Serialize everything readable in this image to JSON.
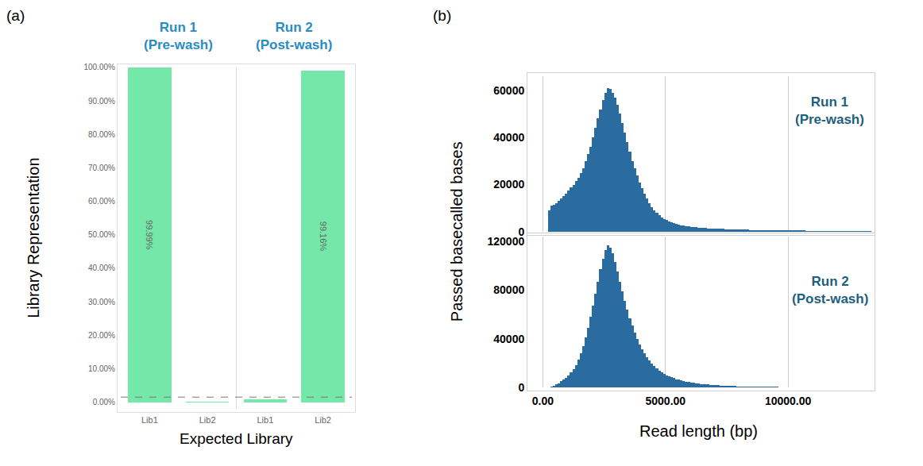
{
  "chart_data": [
    {
      "type": "bar",
      "title": "(a)",
      "xlabel": "Expected Library",
      "ylabel": "Library Representation",
      "ylim": [
        -2,
        100
      ],
      "yticks": [
        {
          "value": 0,
          "label": "0.00%"
        },
        {
          "value": 10,
          "label": "10.00%"
        },
        {
          "value": 20,
          "label": "20.00%"
        },
        {
          "value": 30,
          "label": "30.00%"
        },
        {
          "value": 40,
          "label": "40.00%"
        },
        {
          "value": 50,
          "label": "50.00%"
        },
        {
          "value": 60,
          "label": "60.00%"
        },
        {
          "value": 70,
          "label": "70.00%"
        },
        {
          "value": 80,
          "label": "80.00%"
        },
        {
          "value": 90,
          "label": "90.00%"
        },
        {
          "value": 100,
          "label": "100.00%"
        }
      ],
      "grid": false,
      "color": "#74e8a8",
      "data_labels": true,
      "reference_line": {
        "value": 1.5,
        "line_style": "dash"
      },
      "groups": [
        {
          "name": "Run 1\n(Pre-wash)",
          "categories": [
            "Lib1",
            "Lib2"
          ],
          "values": [
            99.99,
            0.01
          ],
          "value_labels": [
            "99.99%",
            null
          ]
        },
        {
          "name": "Run 2\n(Post-wash)",
          "categories": [
            "Lib1",
            "Lib2"
          ],
          "values": [
            0.84,
            99.16
          ],
          "value_labels": [
            null,
            "99.16%"
          ]
        }
      ]
    },
    {
      "type": "histogram",
      "title": "(b)",
      "xlabel": "Read length (bp)",
      "ylabel": "Passed basecalled bases",
      "xlim": [
        -500,
        13400
      ],
      "xticks": [
        {
          "value": 0,
          "label": "0.00"
        },
        {
          "value": 5000,
          "label": "5000.00"
        },
        {
          "value": 10000,
          "label": "10000.00"
        }
      ],
      "grid": "x",
      "panels": [
        {
          "name": "Run 1\n(Pre-wash)",
          "color": "#2a6c9f",
          "ylim": [
            0,
            66000
          ],
          "yticks": [
            0,
            20000,
            40000,
            60000
          ],
          "bins": [
            0,
            100,
            200,
            300,
            400,
            500,
            600,
            700,
            800,
            900,
            1000,
            1100,
            1200,
            1300,
            1400,
            1500,
            1600,
            1700,
            1800,
            1900,
            2000,
            2100,
            2200,
            2300,
            2400,
            2500,
            2600,
            2700,
            2800,
            2900,
            3000,
            3100,
            3200,
            3300,
            3400,
            3500,
            3600,
            3700,
            3800,
            3900,
            4000,
            4100,
            4200,
            4300,
            4400,
            4500,
            4600,
            4700,
            4800,
            4900,
            5000,
            5100,
            5200,
            5300,
            5400,
            5500,
            5600,
            5700,
            5800,
            5900,
            6000,
            6100,
            6200,
            6300,
            6400,
            6500,
            6600,
            6700,
            6800,
            6900,
            7000,
            7100,
            7200,
            7300,
            7400,
            7500,
            7600,
            7700,
            7800,
            7900,
            8000,
            8100,
            8200,
            8300,
            8400,
            8500,
            8600,
            8700,
            8800,
            8900,
            9000,
            9100,
            9200,
            9300,
            9400,
            9500,
            9600,
            9700,
            9800,
            9900,
            10000,
            10100,
            10200,
            10300,
            10400,
            10500,
            10600,
            10700,
            10800,
            10900,
            11000,
            11100,
            11200,
            11300,
            11400,
            11500,
            11600,
            11700,
            11800,
            11900,
            12000,
            12100,
            12200,
            12300,
            12400,
            12500,
            12600,
            12700,
            12800,
            12900,
            13000,
            13100,
            13200,
            13300,
            13400
          ],
          "counts": [
            0,
            0,
            9000,
            11000,
            11500,
            12000,
            13000,
            14000,
            15000,
            16000,
            17500,
            19000,
            20000,
            21500,
            23000,
            25000,
            27000,
            30000,
            33000,
            36000,
            40000,
            44000,
            48000,
            52000,
            56000,
            59000,
            61000,
            60500,
            59000,
            57000,
            54000,
            50000,
            46000,
            42000,
            38000,
            34000,
            30000,
            27000,
            24000,
            21000,
            18500,
            16000,
            14000,
            12000,
            10500,
            9000,
            8000,
            7000,
            6200,
            5500,
            4900,
            4400,
            4000,
            3600,
            3300,
            3000,
            2800,
            2600,
            2400,
            2200,
            2100,
            2000,
            1900,
            1800,
            1700,
            1600,
            1550,
            1500,
            1450,
            1400,
            1350,
            1300,
            1250,
            1200,
            1150,
            1100,
            1050,
            1000,
            1000,
            950,
            900,
            900,
            850,
            850,
            800,
            800,
            750,
            750,
            700,
            700,
            700,
            650,
            650,
            650,
            600,
            600,
            600,
            600,
            550,
            550,
            550,
            550,
            500,
            500,
            500,
            500,
            500,
            450,
            450,
            450,
            450,
            450,
            450,
            400,
            400,
            400,
            400,
            400,
            400,
            400,
            380,
            380,
            380,
            360,
            360,
            360,
            350,
            350,
            350,
            350,
            340,
            340,
            330,
            330
          ]
        },
        {
          "name": "Run 2\n(Post-wash)",
          "color": "#2a6c9f",
          "ylim": [
            0,
            124000
          ],
          "yticks": [
            0,
            40000,
            80000,
            120000
          ],
          "bins": [
            0,
            100,
            200,
            300,
            400,
            500,
            600,
            700,
            800,
            900,
            1000,
            1100,
            1200,
            1300,
            1400,
            1500,
            1600,
            1700,
            1800,
            1900,
            2000,
            2100,
            2200,
            2300,
            2400,
            2500,
            2600,
            2700,
            2800,
            2900,
            3000,
            3100,
            3200,
            3300,
            3400,
            3500,
            3600,
            3700,
            3800,
            3900,
            4000,
            4100,
            4200,
            4300,
            4400,
            4500,
            4600,
            4700,
            4800,
            4900,
            5000,
            5100,
            5200,
            5300,
            5400,
            5500,
            5600,
            5700,
            5800,
            5900,
            6000,
            6100,
            6200,
            6300,
            6400,
            6500,
            6600,
            6700,
            6800,
            6900,
            7000,
            7100,
            7200,
            7300,
            7400,
            7500,
            7600,
            7700,
            7800,
            7900,
            8000,
            8100,
            8200,
            8300,
            8400,
            8500,
            8600,
            8700,
            8800,
            8900,
            9000,
            9100,
            9200,
            9300,
            9400,
            9500,
            9600,
            9700,
            9800,
            9900,
            10000,
            10100,
            10200,
            10300,
            10400,
            10500,
            10600,
            10700,
            10800,
            10900,
            11000,
            11100,
            11200,
            11300,
            11400,
            11500,
            11600,
            11700,
            11800,
            11900,
            12000,
            12100,
            12200,
            12300,
            12400,
            12500,
            12600,
            12700,
            12800,
            12900,
            13000,
            13100,
            13200,
            13300,
            13400
          ],
          "counts": [
            0,
            0,
            300,
            800,
            1500,
            2500,
            3500,
            5000,
            6500,
            8000,
            10000,
            12500,
            15000,
            18500,
            23000,
            28000,
            34000,
            41000,
            49000,
            58000,
            67000,
            77000,
            87000,
            97000,
            106000,
            113000,
            117000,
            115000,
            110000,
            103000,
            95000,
            87000,
            79000,
            71000,
            64000,
            57000,
            51000,
            45000,
            40000,
            35500,
            31500,
            28000,
            25000,
            22000,
            19500,
            17500,
            15500,
            14000,
            12500,
            11000,
            10000,
            9000,
            8200,
            7500,
            6800,
            6200,
            5700,
            5200,
            4800,
            4400,
            4000,
            3700,
            3400,
            3100,
            2900,
            2700,
            2500,
            2300,
            2100,
            2000,
            1800,
            1700,
            1600,
            1500,
            1400,
            1300,
            1200,
            1100,
            1000,
            950,
            900,
            850,
            800,
            750,
            700,
            650,
            600,
            550,
            500,
            450,
            420,
            400,
            380,
            360,
            340,
            320,
            300,
            280,
            260,
            250,
            240,
            230,
            220,
            210,
            200,
            190,
            180,
            170,
            160,
            150,
            140,
            130,
            120,
            110,
            100,
            100,
            90,
            90,
            80,
            80,
            70,
            70,
            60,
            60,
            60,
            50,
            50,
            50,
            40,
            40,
            40,
            30,
            30,
            30
          ]
        }
      ]
    }
  ]
}
